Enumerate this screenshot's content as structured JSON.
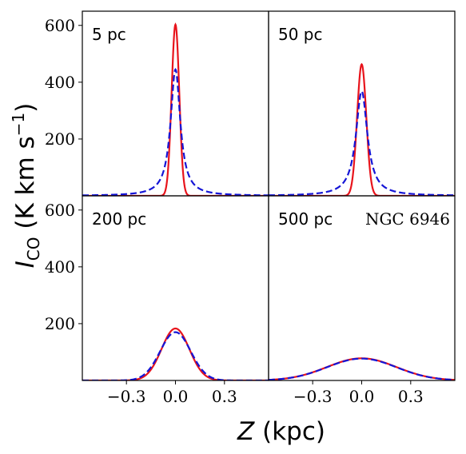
{
  "chart_data": {
    "type": "line",
    "layout": "2x2 grid with shared axes",
    "xlabel": "Z (kpc)",
    "ylabel": "I_CO (K km s^-1)",
    "xlim": [
      -0.57,
      0.57
    ],
    "ylim": [
      0,
      650
    ],
    "x_ticks": [
      -0.3,
      0.0,
      0.3
    ],
    "x_tick_labels": [
      "−0.3",
      "0.0",
      "0.3"
    ],
    "y_ticks": [
      200,
      400,
      600
    ],
    "y_tick_labels": [
      "200",
      "400",
      "600"
    ],
    "annotation": "NGC 6946",
    "series_styles": [
      {
        "color": "#e8141c",
        "style": "solid"
      },
      {
        "color": "#1515d6",
        "style": "dashed"
      }
    ],
    "panels": [
      {
        "label": "5 pc",
        "series": [
          {
            "peak": 603,
            "fwhm": 0.055,
            "shape": "gaussian"
          },
          {
            "peak": 445,
            "fwhm": 0.072,
            "shape": "lorentzian-like"
          }
        ]
      },
      {
        "label": "50 pc",
        "series": [
          {
            "peak": 463,
            "fwhm": 0.066,
            "shape": "gaussian"
          },
          {
            "peak": 368,
            "fwhm": 0.085,
            "shape": "lorentzian-like"
          }
        ]
      },
      {
        "label": "200 pc",
        "series": [
          {
            "peak": 183,
            "fwhm": 0.2,
            "shape": "gaussian"
          },
          {
            "peak": 170,
            "fwhm": 0.22,
            "shape": "gaussian"
          }
        ]
      },
      {
        "label": "500 pc",
        "series": [
          {
            "peak": 78,
            "fwhm": 0.5,
            "shape": "gaussian"
          },
          {
            "peak": 77,
            "fwhm": 0.5,
            "shape": "gaussian"
          }
        ]
      }
    ]
  }
}
